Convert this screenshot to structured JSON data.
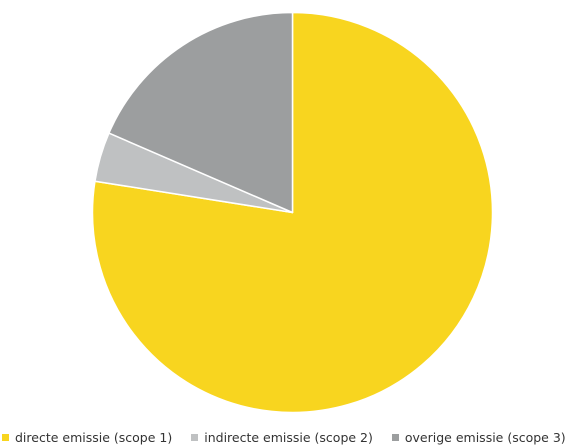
{
  "chart_data": {
    "type": "pie",
    "title": "",
    "slices": [
      {
        "label": "directe emissie (scope 1)",
        "value": 77.5,
        "color": "#f8d51f"
      },
      {
        "label": "indirecte emissie (scope 2)",
        "value": 4.0,
        "color": "#bfc1c2"
      },
      {
        "label": "overige emissie (scope 3)",
        "value": 18.5,
        "color": "#9c9e9f"
      }
    ],
    "start": "12 o'clock",
    "direction": "clockwise",
    "legend": "bottom"
  }
}
